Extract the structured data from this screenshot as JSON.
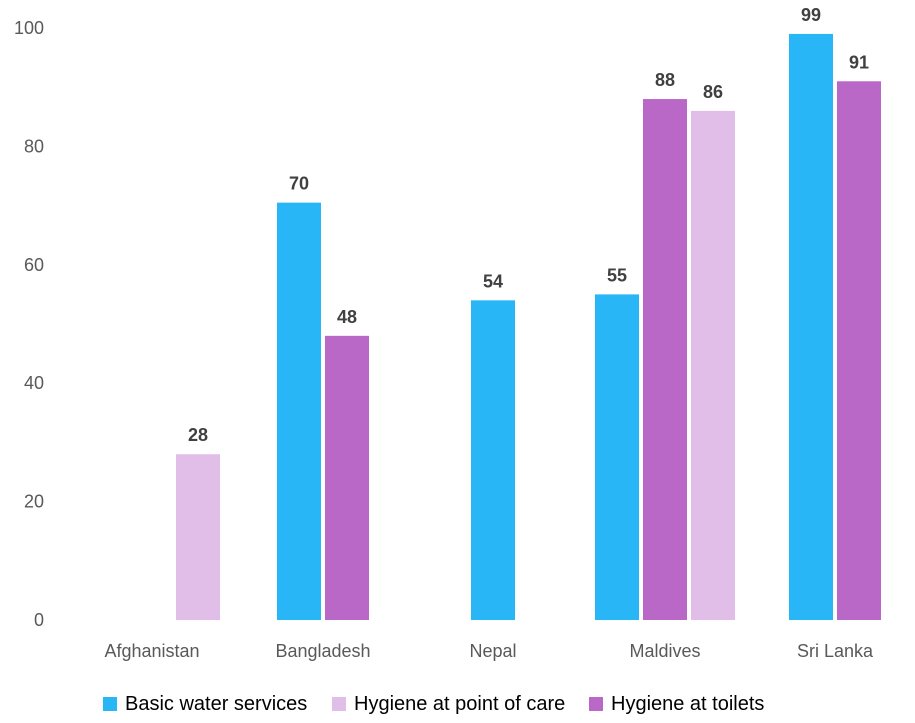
{
  "chart_data": {
    "type": "bar",
    "title": "",
    "xlabel": "",
    "ylabel": "",
    "categories": [
      "Afghanistan",
      "Bangladesh",
      "Nepal",
      "Maldives",
      "Sri Lanka"
    ],
    "ylim": [
      0,
      100
    ],
    "yticks": [
      0,
      20,
      40,
      60,
      80,
      100
    ],
    "grid": false,
    "legend": "bottom",
    "groups": [
      [
        {
          "series": "Hygiene at point of care",
          "value": 28,
          "label": "28"
        }
      ],
      [
        {
          "series": "Basic water services",
          "value": 70.5,
          "label": "70"
        },
        {
          "series": "Hygiene at toilets",
          "value": 48,
          "label": "48"
        }
      ],
      [
        {
          "series": "Basic water services",
          "value": 54,
          "label": "54"
        }
      ],
      [
        {
          "series": "Basic water services",
          "value": 55,
          "label": "55"
        },
        {
          "series": "Hygiene at toilets",
          "value": 88,
          "label": "88"
        },
        {
          "series": "Hygiene at point of care",
          "value": 86,
          "label": "86"
        }
      ],
      [
        {
          "series": "Basic water services",
          "value": 99,
          "label": "99"
        },
        {
          "series": "Hygiene at toilets",
          "value": 91,
          "label": "91"
        }
      ]
    ],
    "series": [
      {
        "name": "Basic water services",
        "color": "#29B6F6"
      },
      {
        "name": "Hygiene at point of care",
        "color": "#E1BEE7"
      },
      {
        "name": "Hygiene at toilets",
        "color": "#BA68C8"
      }
    ]
  }
}
